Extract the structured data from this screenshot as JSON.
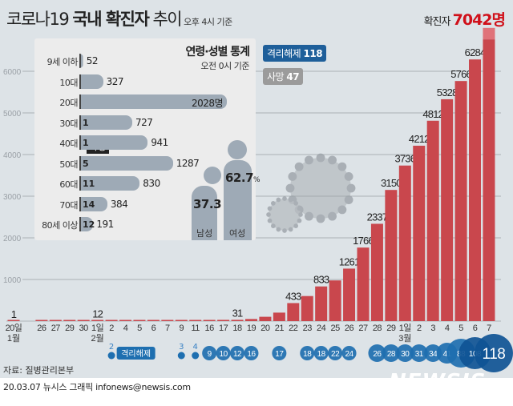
{
  "header": {
    "title_light": "코로나19",
    "title_bold": "국내 확진자",
    "title_tail": "추이",
    "basis": "오후 4시 기준",
    "total_label": "확진자",
    "total_value": "7042명"
  },
  "badges": {
    "released": "격리해제",
    "released_value": "118",
    "deaths": "사망",
    "deaths_value": "47",
    "released_color": "#1e5f9a",
    "deaths_color": "#9b9b9b"
  },
  "age_panel": {
    "title": "연령·성별 통계",
    "basis": "오전 0시 기준",
    "death_tip": "사망",
    "rows": [
      {
        "label": "9세 이하",
        "cases": 52,
        "cases_label": "52",
        "deaths": ""
      },
      {
        "label": "10대",
        "cases": 327,
        "cases_label": "327",
        "deaths": ""
      },
      {
        "label": "20대",
        "cases": 2028,
        "cases_label": "2028명",
        "deaths": ""
      },
      {
        "label": "30대",
        "cases": 727,
        "cases_label": "727",
        "deaths": "1"
      },
      {
        "label": "40대",
        "cases": 941,
        "cases_label": "941",
        "deaths": "1"
      },
      {
        "label": "50대",
        "cases": 1287,
        "cases_label": "1287",
        "deaths": "5"
      },
      {
        "label": "60대",
        "cases": 830,
        "cases_label": "830",
        "deaths": "11"
      },
      {
        "label": "70대",
        "cases": 384,
        "cases_label": "384",
        "deaths": "14"
      },
      {
        "label": "80세 이상",
        "cases": 191,
        "cases_label": "191",
        "deaths": "12"
      }
    ],
    "gender": {
      "male_label": "남성",
      "male_pct": "37.3",
      "female_label": "여성",
      "female_pct": "62.7",
      "pct_unit": "%"
    }
  },
  "chart_data": {
    "type": "bar",
    "title": "코로나19 국내 확진자 추이",
    "ylim": [
      0,
      7000
    ],
    "yticks": [
      1000,
      2000,
      3000,
      4000,
      5000,
      6000
    ],
    "grid": true,
    "bar_color": "#c9474d",
    "latest_color": "#e0737a",
    "categories": [
      "20일",
      "",
      "26",
      "27",
      "29",
      "30",
      "1일",
      "2",
      "4",
      "5",
      "6",
      "7",
      "9",
      "11",
      "16",
      "17",
      "18",
      "19",
      "20",
      "21",
      "22",
      "23",
      "24",
      "25",
      "26",
      "27",
      "28",
      "29",
      "1일",
      "2",
      "3",
      "4",
      "5",
      "6",
      "7"
    ],
    "month_labels": {
      "0": "1월",
      "6": "2월",
      "28": "3월"
    },
    "values": [
      1,
      null,
      3,
      4,
      4,
      4,
      12,
      15,
      16,
      19,
      23,
      24,
      27,
      28,
      29,
      30,
      31,
      51,
      104,
      204,
      433,
      602,
      833,
      977,
      1261,
      1766,
      2337,
      3150,
      3736,
      4212,
      4812,
      5328,
      5766,
      6284,
      6767
    ],
    "latest_value": 7042,
    "data_labels": {
      "0": "1",
      "6": "12",
      "16": "31",
      "20": "433",
      "22": "833",
      "24": "1261",
      "25": "1766",
      "26": "2337",
      "27": "3150",
      "28": "3736",
      "29": "4212",
      "30": "4812",
      "31": "5328",
      "32": "5766",
      "33": "6284"
    },
    "released": {
      "label": "격리해제",
      "values": {
        "7": "2",
        "12": "3",
        "13": "4",
        "14": "9",
        "15": "10",
        "16": "12",
        "17": "16",
        "19": "17",
        "21": "18",
        "22": "18",
        "23": "22",
        "24": "24",
        "26": "26",
        "27": "28",
        "28": "30",
        "29": "31",
        "30": "34",
        "31": "41",
        "32": "88",
        "33": "108",
        "34": "118"
      }
    }
  },
  "footer": {
    "source": "자료: 질병관리본부",
    "credit": "20.03.07 뉴시스 그래픽 infonews@newsis.com",
    "logo": "NEWSIS"
  }
}
